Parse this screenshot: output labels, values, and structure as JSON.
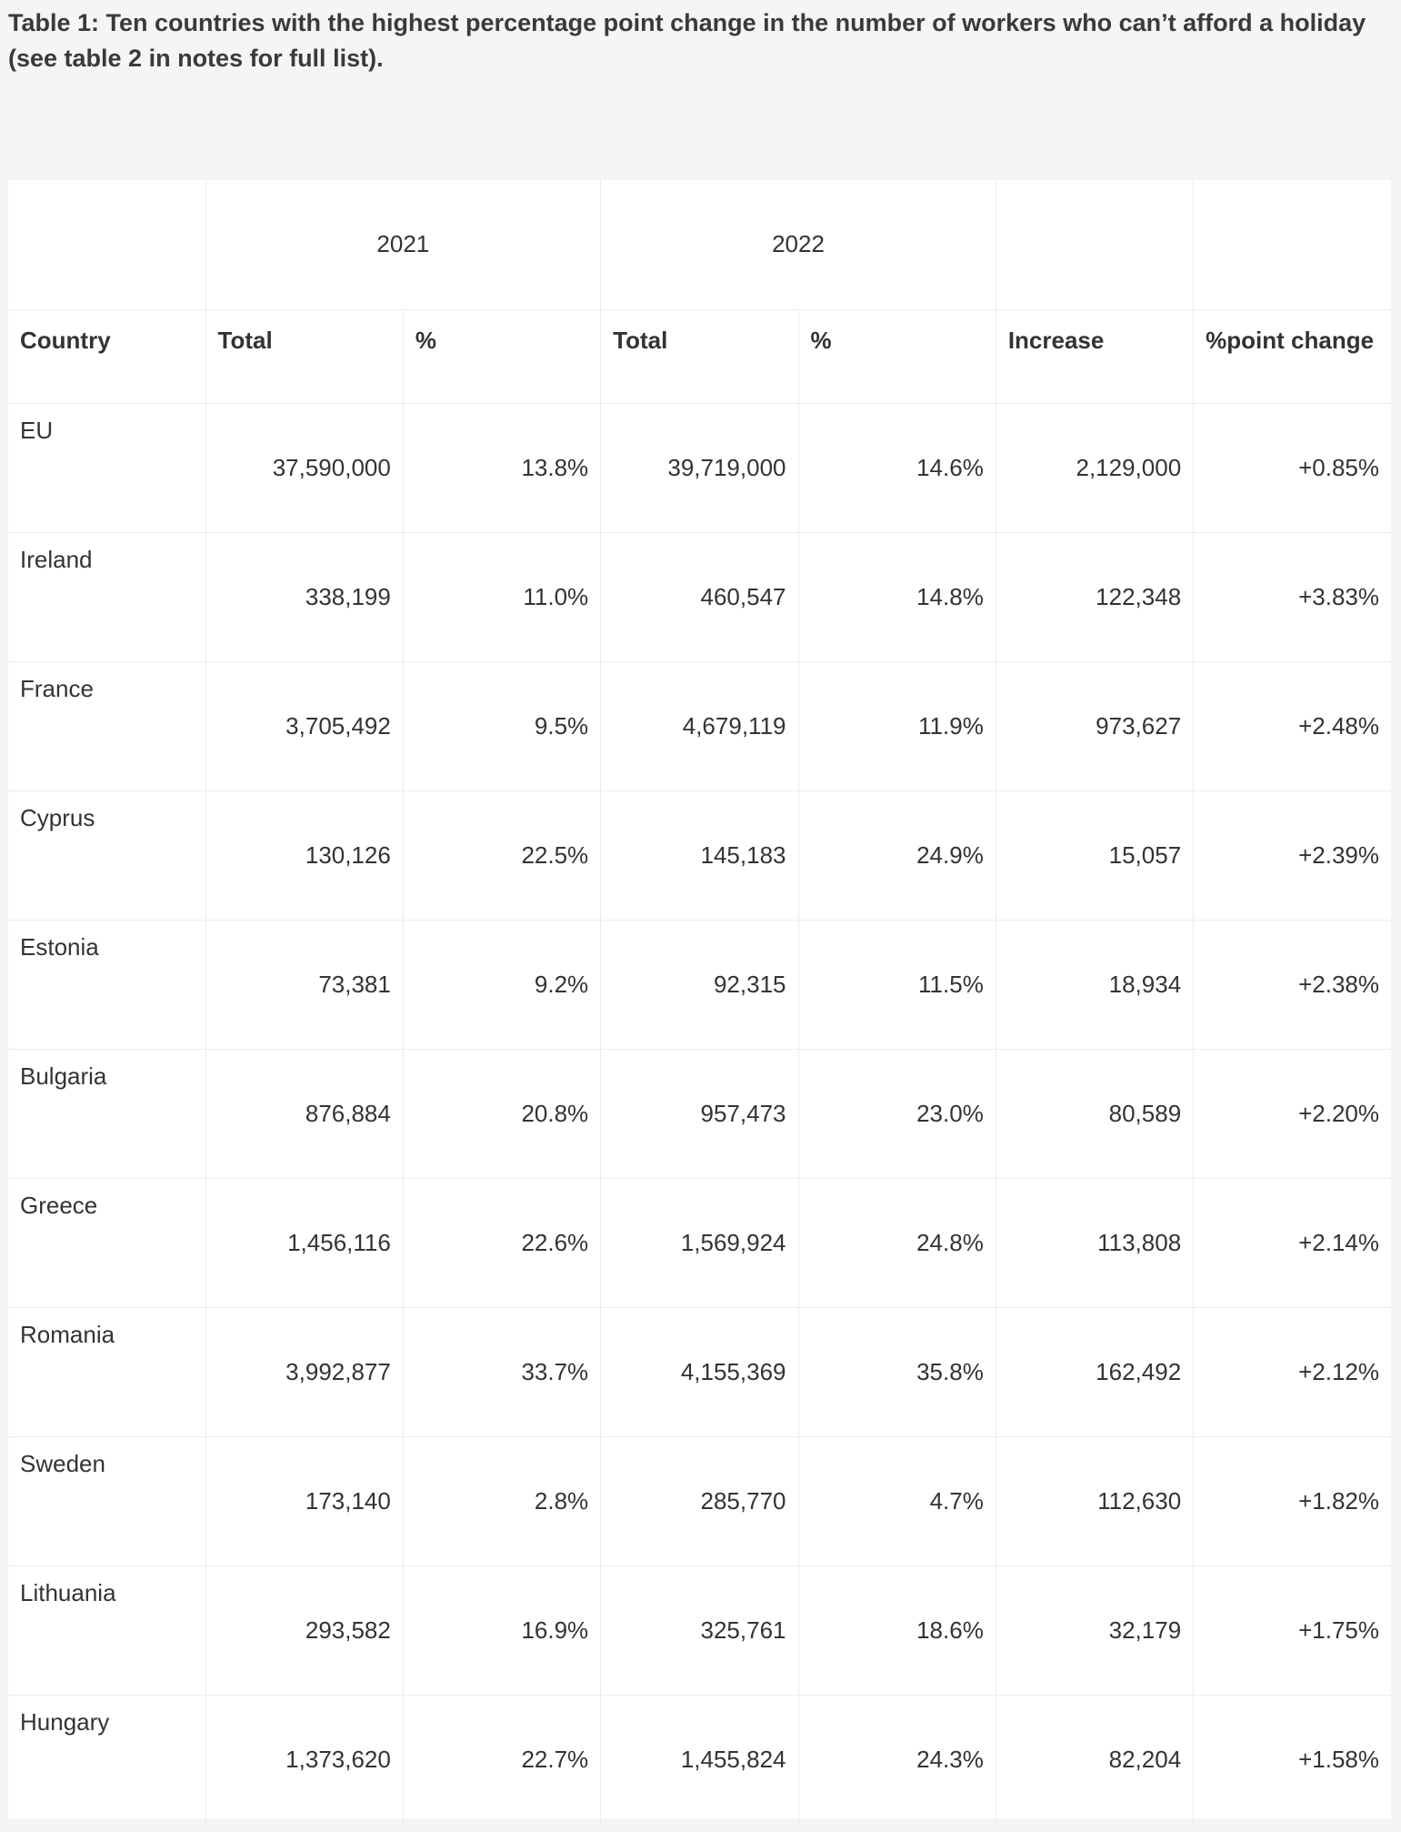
{
  "caption": "Table 1: Ten countries with the highest percentage point change in the number of workers who can’t afford a holiday (see table 2 in notes for full list).",
  "years": {
    "y2021": "2021",
    "y2022": "2022"
  },
  "headers": {
    "country": "Country",
    "total_2021": "Total",
    "pct_2021": "%",
    "total_2022": "Total",
    "pct_2022": "%",
    "increase": "Increase",
    "pp_change": "%point change"
  },
  "rows": [
    {
      "country": "EU",
      "total_2021": "37,590,000",
      "pct_2021": "13.8%",
      "total_2022": "39,719,000",
      "pct_2022": "14.6%",
      "increase": "2,129,000",
      "pp_change": "+0.85%"
    },
    {
      "country": "Ireland",
      "total_2021": "338,199",
      "pct_2021": "11.0%",
      "total_2022": "460,547",
      "pct_2022": "14.8%",
      "increase": "122,348",
      "pp_change": "+3.83%"
    },
    {
      "country": "France",
      "total_2021": "3,705,492",
      "pct_2021": "9.5%",
      "total_2022": "4,679,119",
      "pct_2022": "11.9%",
      "increase": "973,627",
      "pp_change": "+2.48%"
    },
    {
      "country": "Cyprus",
      "total_2021": "130,126",
      "pct_2021": "22.5%",
      "total_2022": "145,183",
      "pct_2022": "24.9%",
      "increase": "15,057",
      "pp_change": "+2.39%"
    },
    {
      "country": "Estonia",
      "total_2021": "73,381",
      "pct_2021": "9.2%",
      "total_2022": "92,315",
      "pct_2022": "11.5%",
      "increase": "18,934",
      "pp_change": "+2.38%"
    },
    {
      "country": "Bulgaria",
      "total_2021": "876,884",
      "pct_2021": "20.8%",
      "total_2022": "957,473",
      "pct_2022": "23.0%",
      "increase": "80,589",
      "pp_change": "+2.20%"
    },
    {
      "country": "Greece",
      "total_2021": "1,456,116",
      "pct_2021": "22.6%",
      "total_2022": "1,569,924",
      "pct_2022": "24.8%",
      "increase": "113,808",
      "pp_change": "+2.14%"
    },
    {
      "country": "Romania",
      "total_2021": "3,992,877",
      "pct_2021": "33.7%",
      "total_2022": "4,155,369",
      "pct_2022": "35.8%",
      "increase": "162,492",
      "pp_change": "+2.12%"
    },
    {
      "country": "Sweden",
      "total_2021": "173,140",
      "pct_2021": "2.8%",
      "total_2022": "285,770",
      "pct_2022": "4.7%",
      "increase": "112,630",
      "pp_change": "+1.82%"
    },
    {
      "country": "Lithuania",
      "total_2021": "293,582",
      "pct_2021": "16.9%",
      "total_2022": "325,761",
      "pct_2022": "18.6%",
      "increase": "32,179",
      "pp_change": "+1.75%"
    },
    {
      "country": "Hungary",
      "total_2021": "1,373,620",
      "pct_2021": "22.7%",
      "total_2022": "1,455,824",
      "pct_2022": "24.3%",
      "increase": "82,204",
      "pp_change": "+1.58%"
    }
  ]
}
